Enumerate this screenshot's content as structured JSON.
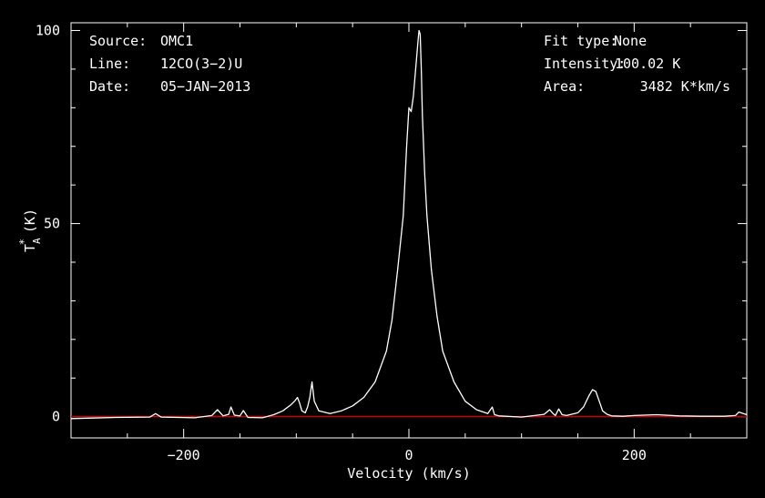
{
  "chart_data": {
    "type": "line",
    "xlabel": "Velocity (km/s)",
    "ylabel_main": "T",
    "ylabel_sup": "*",
    "ylabel_sub": "A",
    "ylabel_unit": "(K)",
    "xlim": [
      -300,
      300
    ],
    "ylim": [
      -5.5,
      102
    ],
    "x_ticks": [
      {
        "value": -200,
        "label": "−200"
      },
      {
        "value": 0,
        "label": "0"
      },
      {
        "value": 200,
        "label": "200"
      }
    ],
    "y_ticks": [
      {
        "value": 0,
        "label": "0"
      },
      {
        "value": 50,
        "label": "50"
      },
      {
        "value": 100,
        "label": "100"
      }
    ],
    "baseline": 0,
    "colors": {
      "spectrum": "#ffffff",
      "baseline": "#cc0000",
      "axes": "#ffffff",
      "background": "#000000"
    },
    "series": [
      {
        "x": [
          -300,
          -260,
          -230,
          -225,
          -220,
          -190,
          -175,
          -170,
          -165,
          -160,
          -158,
          -155,
          -150,
          -147,
          -143,
          -130,
          -120,
          -112,
          -105,
          -101,
          -99,
          -97,
          -95,
          -92,
          -90,
          -88,
          -86,
          -84,
          -80,
          -70,
          -60,
          -50,
          -40,
          -30,
          -20,
          -15,
          -10,
          -5,
          -2,
          0,
          2,
          4,
          6,
          8,
          9,
          10,
          11,
          12,
          14,
          16,
          20,
          25,
          30,
          40,
          50,
          60,
          70,
          74,
          76,
          80,
          100,
          120,
          125,
          128,
          130,
          133,
          136,
          140,
          150,
          155,
          160,
          163,
          166,
          169,
          172,
          176,
          180,
          190,
          200,
          220,
          240,
          260,
          280,
          290,
          293,
          300
        ],
        "y": [
          -0.5,
          -0.2,
          -0.1,
          0.8,
          -0.1,
          -0.3,
          0.3,
          1.8,
          0.2,
          0.6,
          2.5,
          0.4,
          0.2,
          1.6,
          -0.2,
          -0.3,
          0.5,
          1.5,
          3.0,
          4.2,
          5.0,
          3.5,
          1.5,
          1.0,
          2.5,
          5.0,
          9.0,
          4.0,
          1.5,
          0.8,
          1.5,
          2.8,
          5.0,
          9.0,
          17.0,
          25.0,
          38.0,
          52.0,
          70.0,
          80.0,
          79.0,
          83.0,
          90.0,
          97.0,
          100.0,
          99.0,
          90.0,
          78.0,
          63.0,
          52.0,
          38.0,
          26.0,
          17.0,
          9.0,
          4.0,
          1.8,
          0.8,
          2.5,
          0.5,
          0.2,
          -0.1,
          0.6,
          1.8,
          0.8,
          0.3,
          2.0,
          0.5,
          0.3,
          1.0,
          2.5,
          5.5,
          7.0,
          6.5,
          4.0,
          1.5,
          0.6,
          0.2,
          0.1,
          0.3,
          0.5,
          0.2,
          0.1,
          0.1,
          0.3,
          1.2,
          0.5
        ]
      }
    ]
  },
  "info_left": [
    {
      "label": "Source:",
      "value": "OMC1"
    },
    {
      "label": "Line:",
      "value": "12CO(3−2)U"
    },
    {
      "label": "Date:",
      "value": "05−JAN−2013"
    }
  ],
  "info_right": [
    {
      "label": "Fit type:",
      "value": "None"
    },
    {
      "label": "Intensity:",
      "value": "100.02 K"
    },
    {
      "label": "Area:",
      "value": "3482 K*km/s"
    }
  ]
}
